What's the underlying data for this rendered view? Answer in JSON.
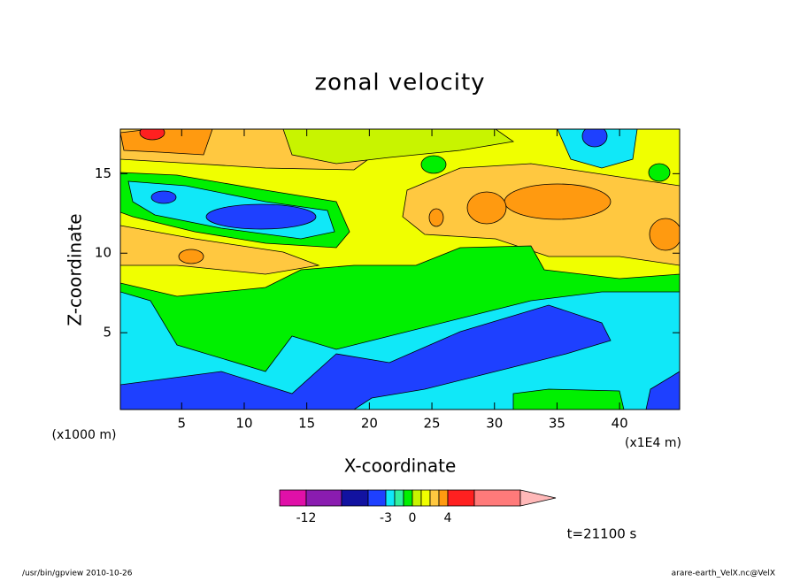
{
  "chart_data": {
    "type": "contour",
    "title": "zonal velocity",
    "x_label": "X-coordinate",
    "y_label": "Z-coordinate",
    "x_unit": "(x1E4 m)",
    "y_unit": "(x1000 m)",
    "xlim": [
      0.1,
      44.8
    ],
    "ylim": [
      0.17,
      17.8
    ],
    "xticks": [
      5,
      10,
      15,
      20,
      25,
      30,
      35,
      40
    ],
    "yticks": [
      5,
      10,
      15
    ],
    "levels": [
      -15,
      -12,
      -8,
      -5,
      -3,
      -2,
      -1,
      0,
      1,
      2,
      3,
      4,
      7,
      12
    ],
    "colors": [
      "#e010a8",
      "#8a1cb0",
      "#1212a0",
      "#1e40ff",
      "#10e8f8",
      "#30f0a0",
      "#00f000",
      "#c8f400",
      "#f0ff00",
      "#ffc840",
      "#ff9a10",
      "#ff2020",
      "#ff7a7a"
    ],
    "extend_color": "#ffb8b8",
    "colorbar_ticks": [
      -12,
      -3,
      0,
      4
    ],
    "time_label": "t=21100 s",
    "footer_left": "/usr/bin/gpview  2010-10-26",
    "footer_right": "arare-earth_VelX.nc@VelX"
  }
}
